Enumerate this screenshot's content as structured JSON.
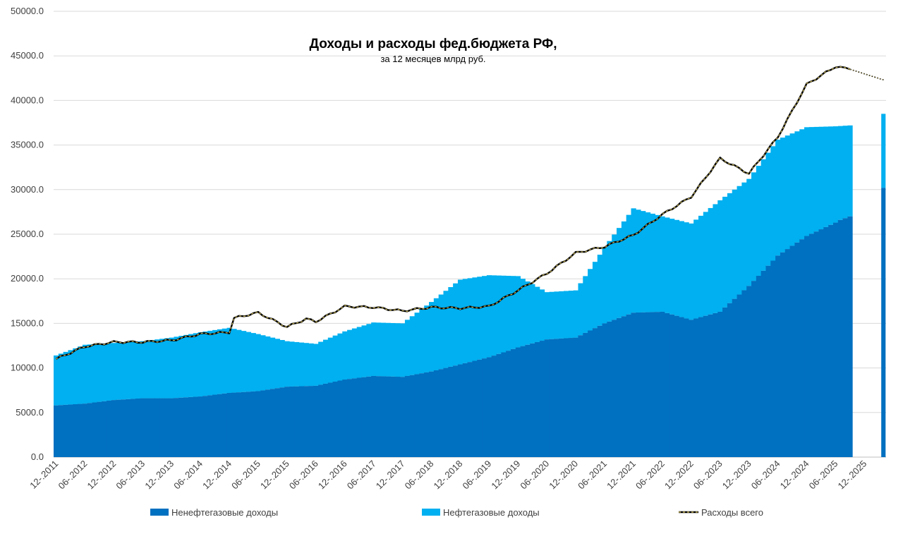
{
  "chart_data": {
    "type": "area",
    "title": "Доходы и расходы фед.бюджета РФ,",
    "subtitle": "за 12 месяцев млрд руб.",
    "ylim": [
      0,
      50000
    ],
    "y_ticks": [
      "0.0",
      "5000.0",
      "10000.0",
      "15000.0",
      "20000.0",
      "25000.0",
      "30000.0",
      "35000.0",
      "40000.0",
      "45000.0",
      "50000.0"
    ],
    "x_tick_labels": [
      "12-.2011",
      "06-.2012",
      "12-.2012",
      "06-.2013",
      "12-.2013",
      "06-.2014",
      "12-.2014",
      "06-.2015",
      "12-.2015",
      "06-.2016",
      "12-.2016",
      "06-.2017",
      "12-.2017",
      "06-.2018",
      "12-.2018",
      "06-.2019",
      "12-.2019",
      "06-.2020",
      "12-.2020",
      "06-.2021",
      "12-.2021",
      "06-.2022",
      "12-.2022",
      "06-.2023",
      "12-.2023",
      "06-.2024",
      "12-.2024",
      "06-.2025",
      "12-.2025"
    ],
    "grid": "horizontal",
    "legend_position": "bottom",
    "colors": {
      "non_oil": "#0070C0",
      "oil": "#00B0F0",
      "expenses": "#000000",
      "expenses_dash": "#D6C25A"
    },
    "series": [
      {
        "name": "Ненефтегазовые доходы",
        "kind": "stacked-bar",
        "anchors": [
          [
            0,
            5800
          ],
          [
            6,
            6000
          ],
          [
            12,
            6400
          ],
          [
            18,
            6600
          ],
          [
            24,
            6600
          ],
          [
            30,
            6800
          ],
          [
            36,
            7200
          ],
          [
            42,
            7400
          ],
          [
            48,
            7900
          ],
          [
            54,
            8000
          ],
          [
            60,
            8700
          ],
          [
            66,
            9100
          ],
          [
            72,
            9000
          ],
          [
            78,
            9600
          ],
          [
            84,
            10400
          ],
          [
            90,
            11200
          ],
          [
            96,
            12300
          ],
          [
            102,
            13200
          ],
          [
            108,
            13400
          ],
          [
            114,
            15000
          ],
          [
            120,
            16200
          ],
          [
            126,
            16300
          ],
          [
            132,
            15400
          ],
          [
            138,
            16300
          ],
          [
            144,
            19200
          ],
          [
            150,
            22600
          ],
          [
            156,
            24800
          ],
          [
            162,
            26300
          ],
          [
            163,
            26600
          ],
          [
            164,
            26800
          ],
          [
            165,
            27000
          ],
          [
            172,
            30200
          ]
        ]
      },
      {
        "name": "Нефтегазовые доходы",
        "kind": "stacked-bar",
        "anchors": [
          [
            0,
            11400
          ],
          [
            6,
            12600
          ],
          [
            12,
            12800
          ],
          [
            18,
            13000
          ],
          [
            24,
            13400
          ],
          [
            30,
            14000
          ],
          [
            36,
            14500
          ],
          [
            42,
            13800
          ],
          [
            48,
            13000
          ],
          [
            54,
            12700
          ],
          [
            60,
            14100
          ],
          [
            66,
            15100
          ],
          [
            72,
            15000
          ],
          [
            78,
            17400
          ],
          [
            84,
            19900
          ],
          [
            90,
            20400
          ],
          [
            96,
            20300
          ],
          [
            102,
            18500
          ],
          [
            108,
            18700
          ],
          [
            114,
            23500
          ],
          [
            120,
            27900
          ],
          [
            126,
            27000
          ],
          [
            132,
            26200
          ],
          [
            138,
            28800
          ],
          [
            144,
            31200
          ],
          [
            150,
            35600
          ],
          [
            156,
            37000
          ],
          [
            162,
            37100
          ],
          [
            165,
            37200
          ],
          [
            172,
            38500
          ]
        ]
      },
      {
        "name": "Расходы всего",
        "kind": "line",
        "anchors": [
          [
            0,
            11000
          ],
          [
            6,
            12400
          ],
          [
            12,
            12900
          ],
          [
            18,
            12900
          ],
          [
            24,
            13100
          ],
          [
            30,
            13800
          ],
          [
            36,
            14000
          ],
          [
            37,
            15600
          ],
          [
            42,
            16200
          ],
          [
            48,
            14600
          ],
          [
            52,
            15500
          ],
          [
            54,
            15200
          ],
          [
            60,
            16900
          ],
          [
            66,
            16800
          ],
          [
            72,
            16400
          ],
          [
            78,
            16800
          ],
          [
            84,
            16700
          ],
          [
            90,
            16900
          ],
          [
            96,
            18700
          ],
          [
            102,
            20600
          ],
          [
            108,
            22900
          ],
          [
            114,
            23600
          ],
          [
            120,
            24900
          ],
          [
            126,
            27200
          ],
          [
            132,
            29200
          ],
          [
            138,
            33500
          ],
          [
            144,
            31800
          ],
          [
            150,
            35900
          ],
          [
            156,
            41800
          ],
          [
            162,
            43800
          ],
          [
            165,
            43500
          ],
          [
            172,
            42300
          ]
        ],
        "dotted_from": 165
      }
    ]
  },
  "legend": {
    "non_oil_label": "Ненефтегазовые доходы",
    "oil_label": "Нефтегазовые доходы",
    "expenses_label": "Расходы всего"
  }
}
